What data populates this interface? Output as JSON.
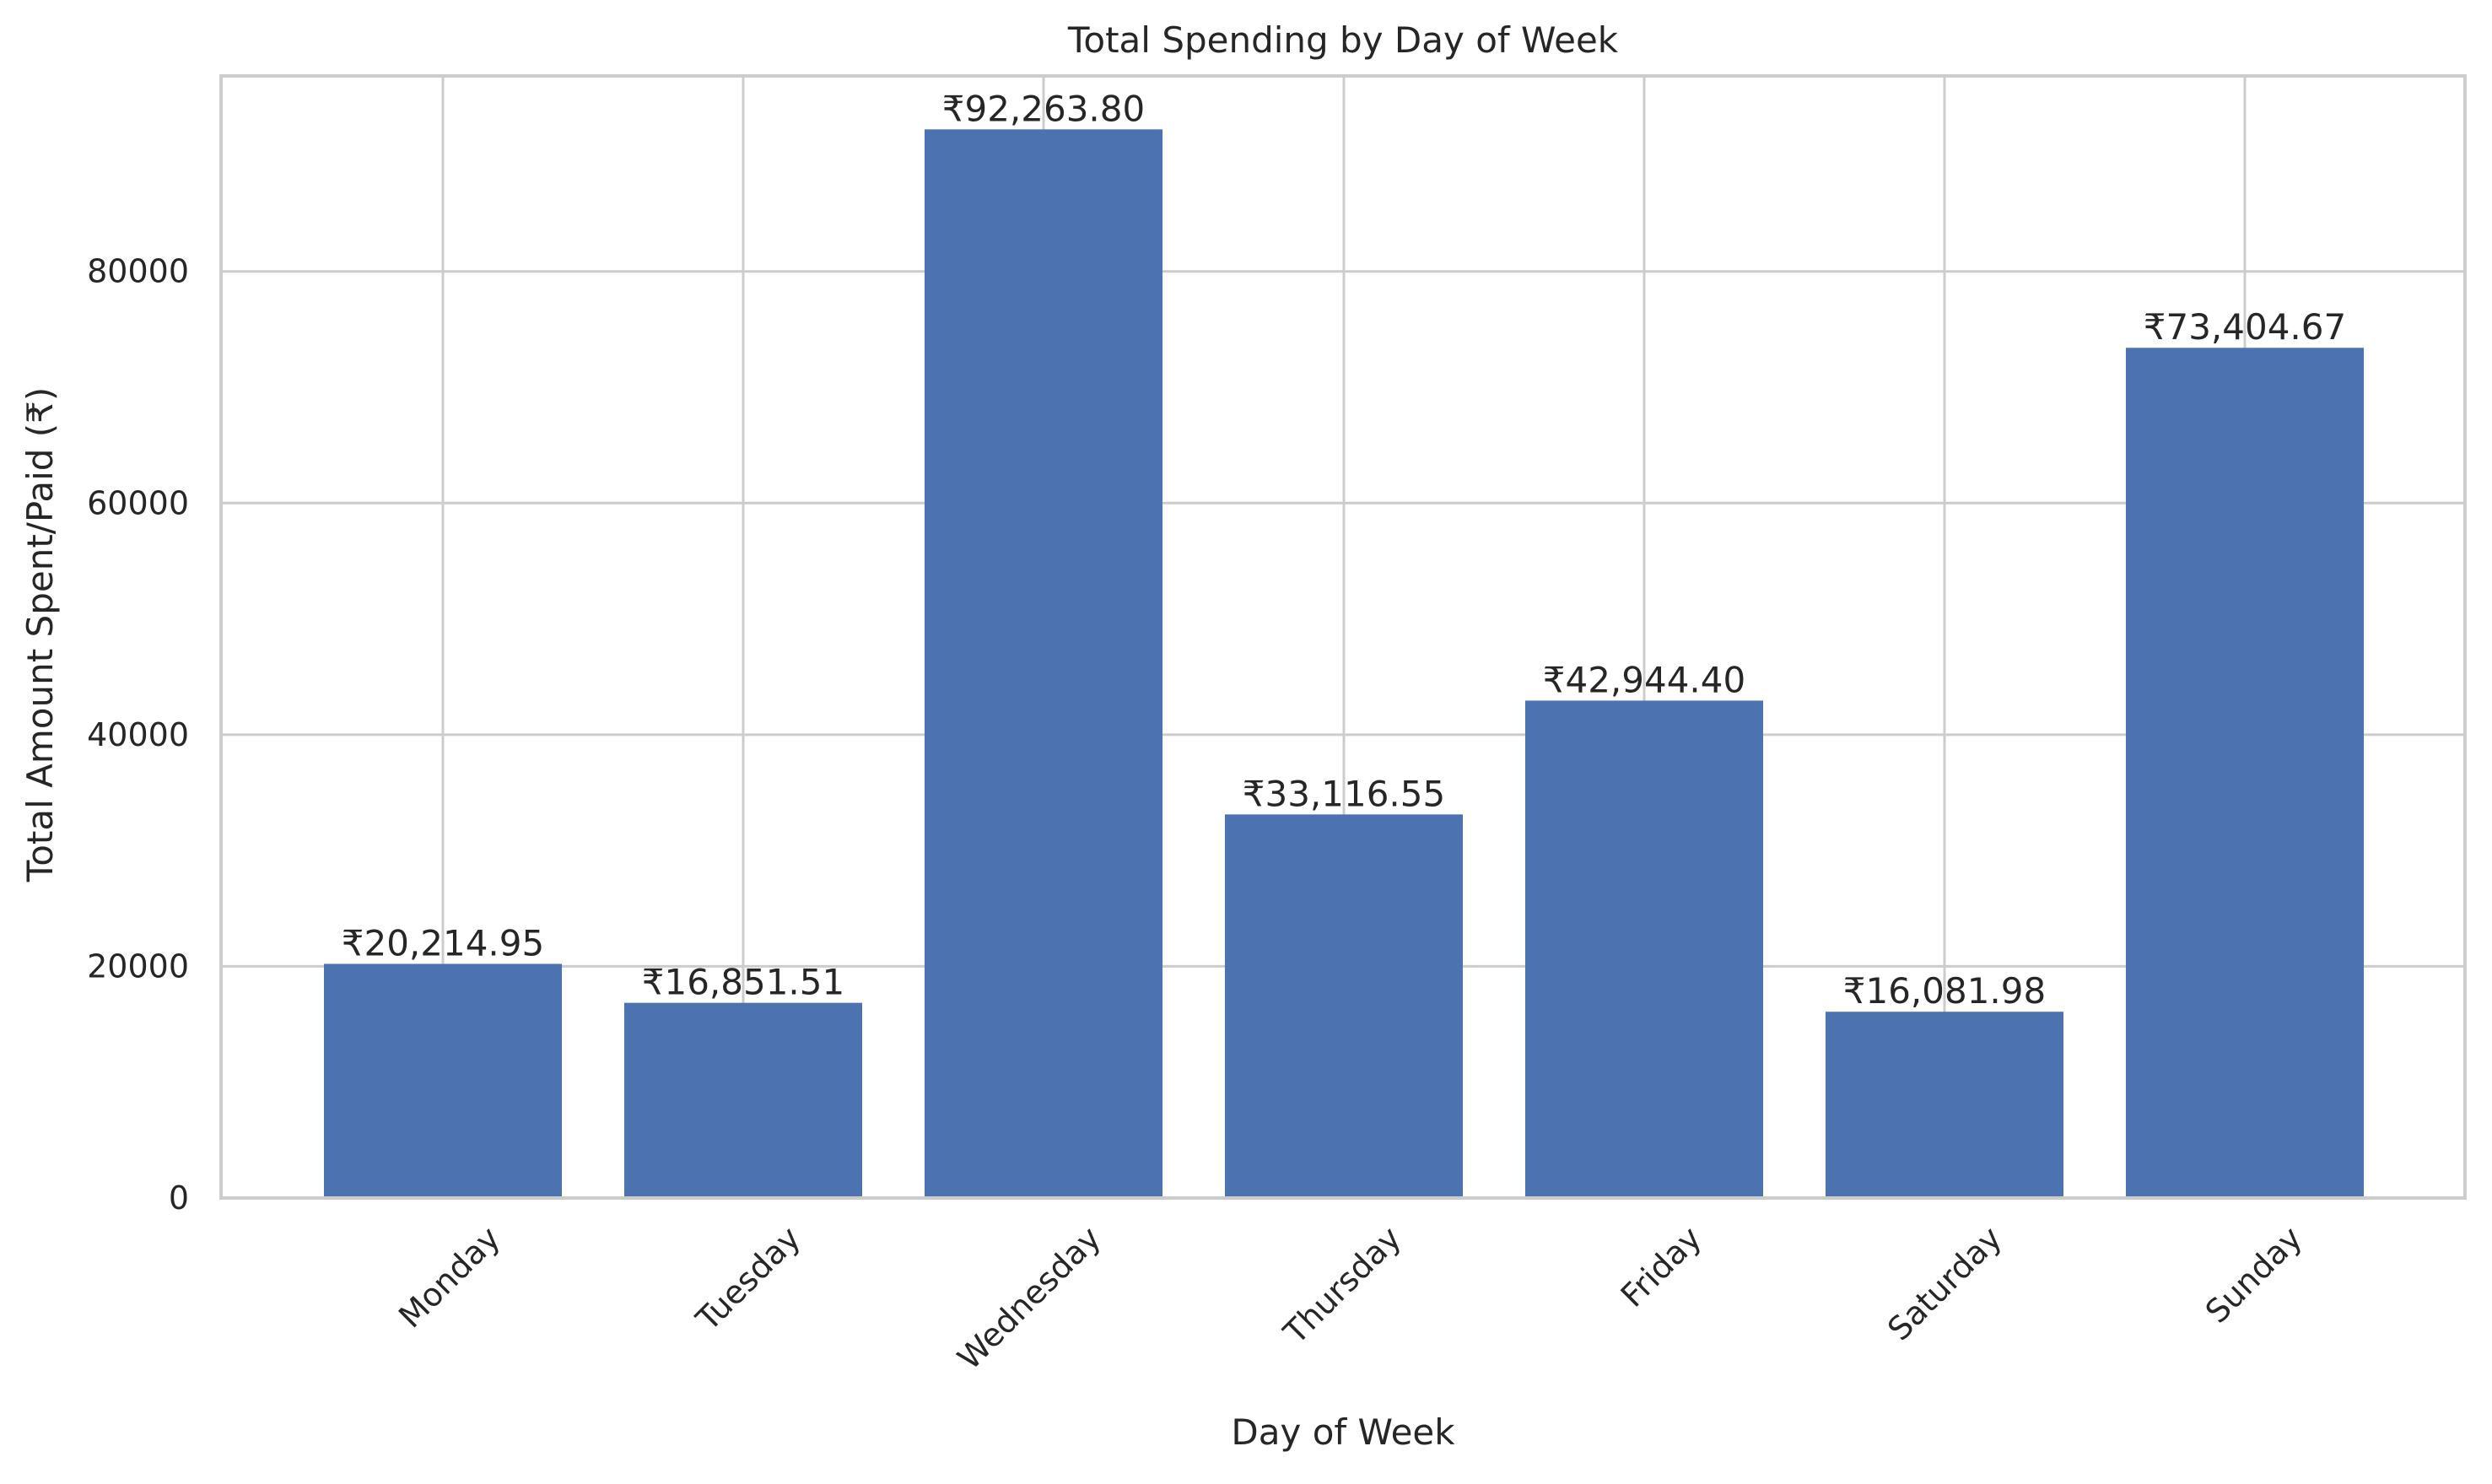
{
  "chart_data": {
    "type": "bar",
    "title": "Total Spending by Day of Week",
    "xlabel": "Day of Week",
    "ylabel": "Total Amount Spent/Paid (₹)",
    "categories": [
      "Monday",
      "Tuesday",
      "Wednesday",
      "Thursday",
      "Friday",
      "Saturday",
      "Sunday"
    ],
    "values": [
      20214.95,
      16851.51,
      92263.8,
      33116.55,
      42944.4,
      16081.98,
      73404.67
    ],
    "data_labels": [
      "₹20,214.95",
      "₹16,851.51",
      "₹92,263.80",
      "₹33,116.55",
      "₹42,944.40",
      "₹16,081.98",
      "₹73,404.67"
    ],
    "yticks": [
      0,
      20000,
      40000,
      60000,
      80000
    ],
    "ytick_labels": [
      "0",
      "20000",
      "40000",
      "60000",
      "80000"
    ],
    "ylim": [
      0,
      96877
    ],
    "bar_color": "#4c72b0",
    "grid": true
  }
}
